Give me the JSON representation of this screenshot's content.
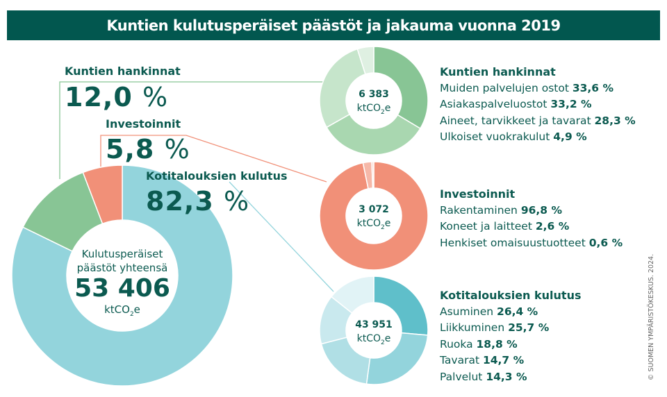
{
  "title": "Kuntien kulutusperäiset päästöt ja jakauma vuonna 2019",
  "copyright": "© SUOMEN YMPÄRISTÖKESKUS. 2024.",
  "chart_data": [
    {
      "type": "pie",
      "name": "total",
      "center_label": [
        "Kulutusperäiset",
        "päästöt yhteensä"
      ],
      "total": "53 406",
      "unit": "ktCO2e",
      "categories": [
        "Kotitalouksien kulutus",
        "Kuntien hankinnat",
        "Investoinnit"
      ],
      "values": [
        82.3,
        12.0,
        5.8
      ],
      "value_labels": [
        "82,3",
        "12,0",
        "5,8"
      ],
      "colors": [
        "#93d4dc",
        "#88c595",
        "#f19078"
      ]
    },
    {
      "type": "pie",
      "name": "Kuntien hankinnat",
      "total": "6 383",
      "unit": "ktCO2e",
      "categories": [
        "Muiden palvelujen ostot",
        "Asiakaspalveluostot",
        "Aineet, tarvikkeet ja tavarat",
        "Ulkoiset vuokrakulut"
      ],
      "values": [
        33.6,
        33.2,
        28.3,
        4.9
      ],
      "value_labels": [
        "33,6 %",
        "33,2 %",
        "28,3 %",
        "4,9 %"
      ],
      "colors": [
        "#88c595",
        "#a9d7b0",
        "#c6e5cb",
        "#dff0e2"
      ]
    },
    {
      "type": "pie",
      "name": "Investoinnit",
      "total": "3 072",
      "unit": "ktCO2e",
      "categories": [
        "Rakentaminen",
        "Koneet ja laitteet",
        "Henkiset omaisuustuotteet"
      ],
      "values": [
        96.8,
        2.6,
        0.6
      ],
      "value_labels": [
        "96,8 %",
        "2,6 %",
        "0,6 %"
      ],
      "colors": [
        "#f19078",
        "#f6b8a8",
        "#fad8cf"
      ]
    },
    {
      "type": "pie",
      "name": "Kotitalouksien kulutus",
      "total": "43 951",
      "unit": "ktCO2e",
      "categories": [
        "Asuminen",
        "Liikkuminen",
        "Ruoka",
        "Tavarat",
        "Palvelut"
      ],
      "values": [
        26.4,
        25.7,
        18.8,
        14.7,
        14.3
      ],
      "value_labels": [
        "26,4 %",
        "25,7 %",
        "18,8 %",
        "14,7 %",
        "14,3 %"
      ],
      "colors": [
        "#5fbfca",
        "#93d4dc",
        "#b0dfe5",
        "#c9e9ee",
        "#e1f3f6"
      ]
    }
  ],
  "pct": "%"
}
